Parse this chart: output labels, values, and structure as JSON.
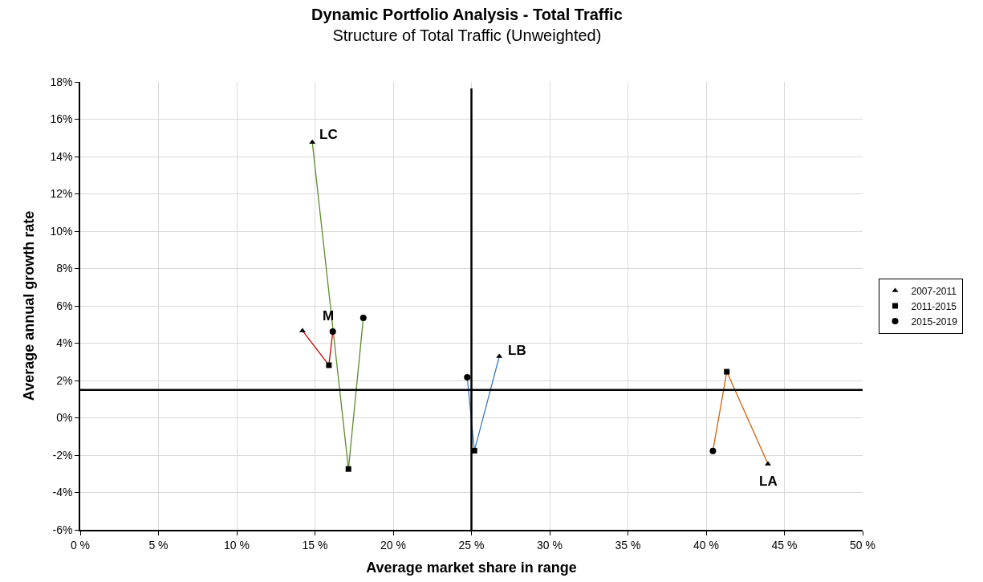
{
  "chart_data": {
    "type": "scatter",
    "title": "Dynamic Portfolio Analysis - Total Traffic",
    "subtitle": "Structure of Total Traffic (Unweighted)",
    "xlabel": "Average market share in range",
    "ylabel": "Average annual growth rate",
    "series": [
      {
        "type": "line",
        "color": "#5b8c2a",
        "x": [
          14.83,
          17.14,
          18.09
        ],
        "values": [
          14.76,
          -2.74,
          5.35
        ],
        "marker": "none"
      },
      {
        "type": "line",
        "color": "#cc0000",
        "x": [
          14.2,
          15.89,
          16.14
        ],
        "values": [
          4.67,
          2.82,
          4.62
        ],
        "marker": "none"
      },
      {
        "type": "line",
        "color": "#3a7cc0",
        "x": [
          26.78,
          25.19,
          24.73
        ],
        "values": [
          3.29,
          -1.76,
          2.17
        ],
        "marker": "none"
      },
      {
        "type": "line",
        "color": "#d0620a",
        "x": [
          43.95,
          41.32,
          40.43
        ],
        "values": [
          -2.47,
          2.47,
          -1.77
        ],
        "marker": "none"
      },
      {
        "name": "2007-2011",
        "color": "#000000",
        "marker": "triangle",
        "x": [
          14.83,
          14.2,
          26.78,
          43.95
        ],
        "values": [
          14.76,
          4.67,
          3.29,
          -2.47
        ]
      },
      {
        "name": "2011-2015",
        "color": "#000000",
        "marker": "square",
        "x": [
          17.14,
          15.89,
          25.19,
          41.32
        ],
        "values": [
          -2.74,
          2.82,
          -1.76,
          2.47
        ]
      },
      {
        "name": "2015-2019",
        "color": "#000000",
        "marker": "circle",
        "x": [
          18.09,
          16.14,
          24.73,
          40.43
        ],
        "values": [
          5.35,
          4.62,
          2.17,
          -1.77
        ]
      }
    ],
    "annotations": [
      {
        "text": "LC",
        "x": 14.83,
        "y": 14.76
      },
      {
        "text": "M",
        "x": 16.14,
        "y": 4.62
      },
      {
        "text": "LB",
        "x": 26.78,
        "y": 3.29
      },
      {
        "text": "LA",
        "x": 43.95,
        "y": -2.47
      }
    ],
    "ref_lines": [
      {
        "axis": "x",
        "value": 25,
        "color": "#000000"
      },
      {
        "axis": "y",
        "value": 1.5,
        "color": "#000000"
      }
    ],
    "xlim": [
      0,
      50
    ],
    "ylim": [
      -6,
      18
    ],
    "xticks": [
      {
        "value": 0,
        "label": "0 %"
      },
      {
        "value": 5,
        "label": "5 %"
      },
      {
        "value": 10,
        "label": "10 %"
      },
      {
        "value": 15,
        "label": "15 %"
      },
      {
        "value": 20,
        "label": "20 %"
      },
      {
        "value": 25,
        "label": "25 %"
      },
      {
        "value": 30,
        "label": "30 %"
      },
      {
        "value": 35,
        "label": "35 %"
      },
      {
        "value": 40,
        "label": "40 %"
      },
      {
        "value": 45,
        "label": "45 %"
      },
      {
        "value": 50,
        "label": "50 %"
      }
    ],
    "yticks": [
      {
        "value": -6,
        "label": "-6%"
      },
      {
        "value": -4,
        "label": "-4%"
      },
      {
        "value": -2,
        "label": "-2%"
      },
      {
        "value": 0,
        "label": "0%"
      },
      {
        "value": 2,
        "label": "2%"
      },
      {
        "value": 4,
        "label": "4%"
      },
      {
        "value": 6,
        "label": "6%"
      },
      {
        "value": 8,
        "label": "8%"
      },
      {
        "value": 10,
        "label": "10%"
      },
      {
        "value": 12,
        "label": "12%"
      },
      {
        "value": 14,
        "label": "14%"
      },
      {
        "value": 16,
        "label": "16%"
      },
      {
        "value": 18,
        "label": "18%"
      }
    ],
    "grid": true,
    "legend": "right"
  }
}
